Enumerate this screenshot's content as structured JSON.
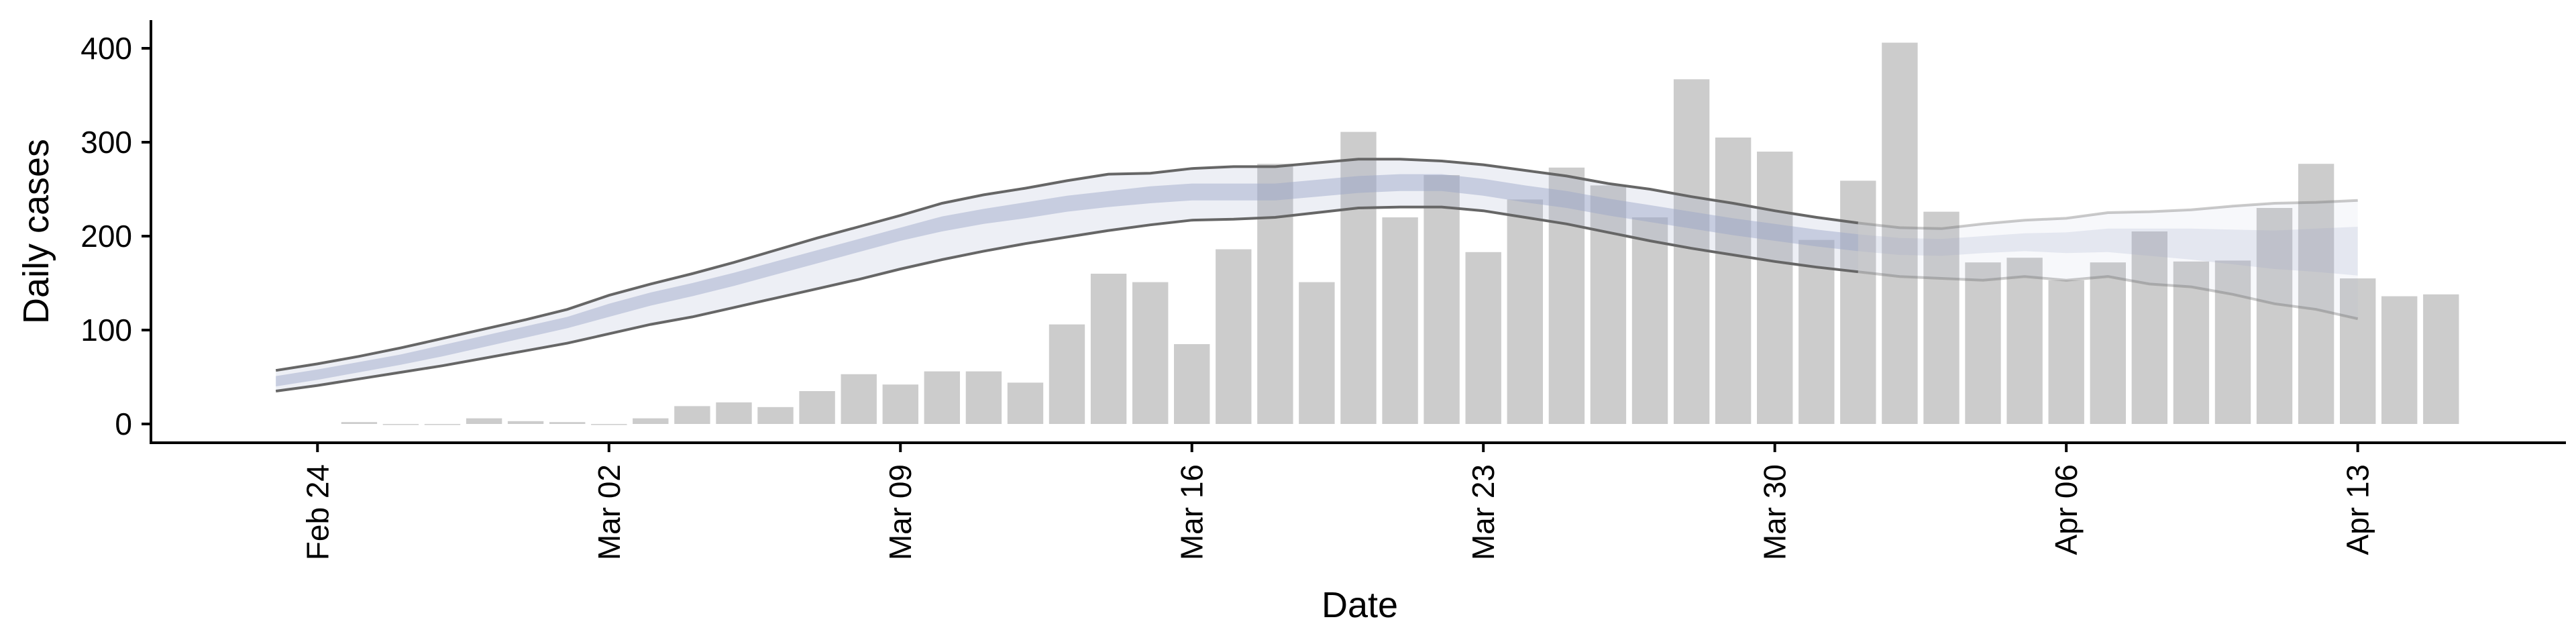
{
  "chart_data": {
    "type": "bar",
    "xlabel": "Date",
    "ylabel": "Daily cases",
    "ylim": [
      -20,
      430
    ],
    "xlim": [
      "2020-02-20",
      "2020-04-18"
    ],
    "grid": false,
    "legend": "none",
    "yticks": [
      0,
      100,
      200,
      300,
      400
    ],
    "xticks": [
      {
        "date": "2020-02-24",
        "label": "Feb 24"
      },
      {
        "date": "2020-03-02",
        "label": "Mar 02"
      },
      {
        "date": "2020-03-09",
        "label": "Mar 09"
      },
      {
        "date": "2020-03-16",
        "label": "Mar 16"
      },
      {
        "date": "2020-03-23",
        "label": "Mar 23"
      },
      {
        "date": "2020-03-30",
        "label": "Mar 30"
      },
      {
        "date": "2020-04-06",
        "label": "Apr 06"
      },
      {
        "date": "2020-04-13",
        "label": "Apr 13"
      }
    ],
    "bars": {
      "color": "#cccccc",
      "start_date": "2020-02-25",
      "values": [
        2,
        0,
        0,
        6,
        3,
        2,
        0,
        6,
        19,
        23,
        18,
        35,
        53,
        42,
        56,
        56,
        44,
        106,
        160,
        151,
        85,
        186,
        277,
        151,
        311,
        220,
        265,
        183,
        239,
        273,
        254,
        220,
        367,
        305,
        290,
        196,
        259,
        406,
        226,
        172,
        177,
        153,
        172,
        205,
        173,
        174,
        230,
        277,
        155,
        136,
        138
      ]
    },
    "estimate": {
      "start_date": "2020-02-23",
      "estimate_end_date": "2020-04-01",
      "end_date": "2020-04-06",
      "band_color": "#9aa5c7",
      "line_color": "#666666",
      "median": [
        45,
        52,
        60,
        68,
        78,
        88,
        98,
        108,
        121,
        133,
        143,
        154,
        166,
        178,
        190,
        202,
        213,
        221,
        228,
        235,
        240,
        245,
        248,
        248,
        248,
        252,
        256,
        258,
        258,
        253,
        246,
        240,
        232,
        225,
        218,
        211,
        205,
        199,
        194,
        190,
        189,
        192,
        194,
        194,
        196,
        194,
        192,
        188,
        186,
        186,
        185
      ],
      "inner_low": [
        40,
        47,
        55,
        63,
        72,
        82,
        92,
        102,
        114,
        126,
        136,
        147,
        159,
        171,
        183,
        195,
        205,
        213,
        219,
        226,
        231,
        235,
        238,
        238,
        238,
        242,
        246,
        248,
        248,
        243,
        236,
        230,
        222,
        215,
        208,
        201,
        195,
        189,
        184,
        180,
        179,
        182,
        184,
        182,
        183,
        179,
        175,
        170,
        165,
        162,
        158
      ],
      "inner_high": [
        51,
        58,
        66,
        74,
        84,
        94,
        104,
        114,
        128,
        140,
        150,
        161,
        173,
        185,
        197,
        209,
        221,
        229,
        236,
        243,
        248,
        253,
        256,
        256,
        256,
        260,
        264,
        266,
        266,
        261,
        254,
        248,
        240,
        233,
        226,
        219,
        213,
        207,
        202,
        198,
        197,
        200,
        203,
        204,
        208,
        208,
        208,
        207,
        206,
        208,
        210
      ],
      "outer_low": [
        35,
        41,
        48,
        55,
        62,
        70,
        78,
        86,
        96,
        106,
        114,
        124,
        134,
        144,
        154,
        165,
        175,
        184,
        192,
        199,
        206,
        212,
        217,
        218,
        220,
        225,
        230,
        231,
        231,
        227,
        220,
        213,
        204,
        195,
        187,
        180,
        173,
        167,
        162,
        157,
        155,
        153,
        157,
        153,
        157,
        149,
        146,
        138,
        128,
        122,
        112
      ],
      "outer_high": [
        57,
        64,
        72,
        81,
        91,
        101,
        111,
        122,
        137,
        149,
        160,
        172,
        185,
        198,
        210,
        222,
        235,
        244,
        251,
        259,
        266,
        267,
        272,
        274,
        274,
        278,
        282,
        282,
        280,
        276,
        270,
        264,
        256,
        250,
        242,
        235,
        227,
        220,
        214,
        209,
        208,
        213,
        217,
        219,
        225,
        226,
        228,
        232,
        235,
        236,
        238
      ]
    }
  }
}
